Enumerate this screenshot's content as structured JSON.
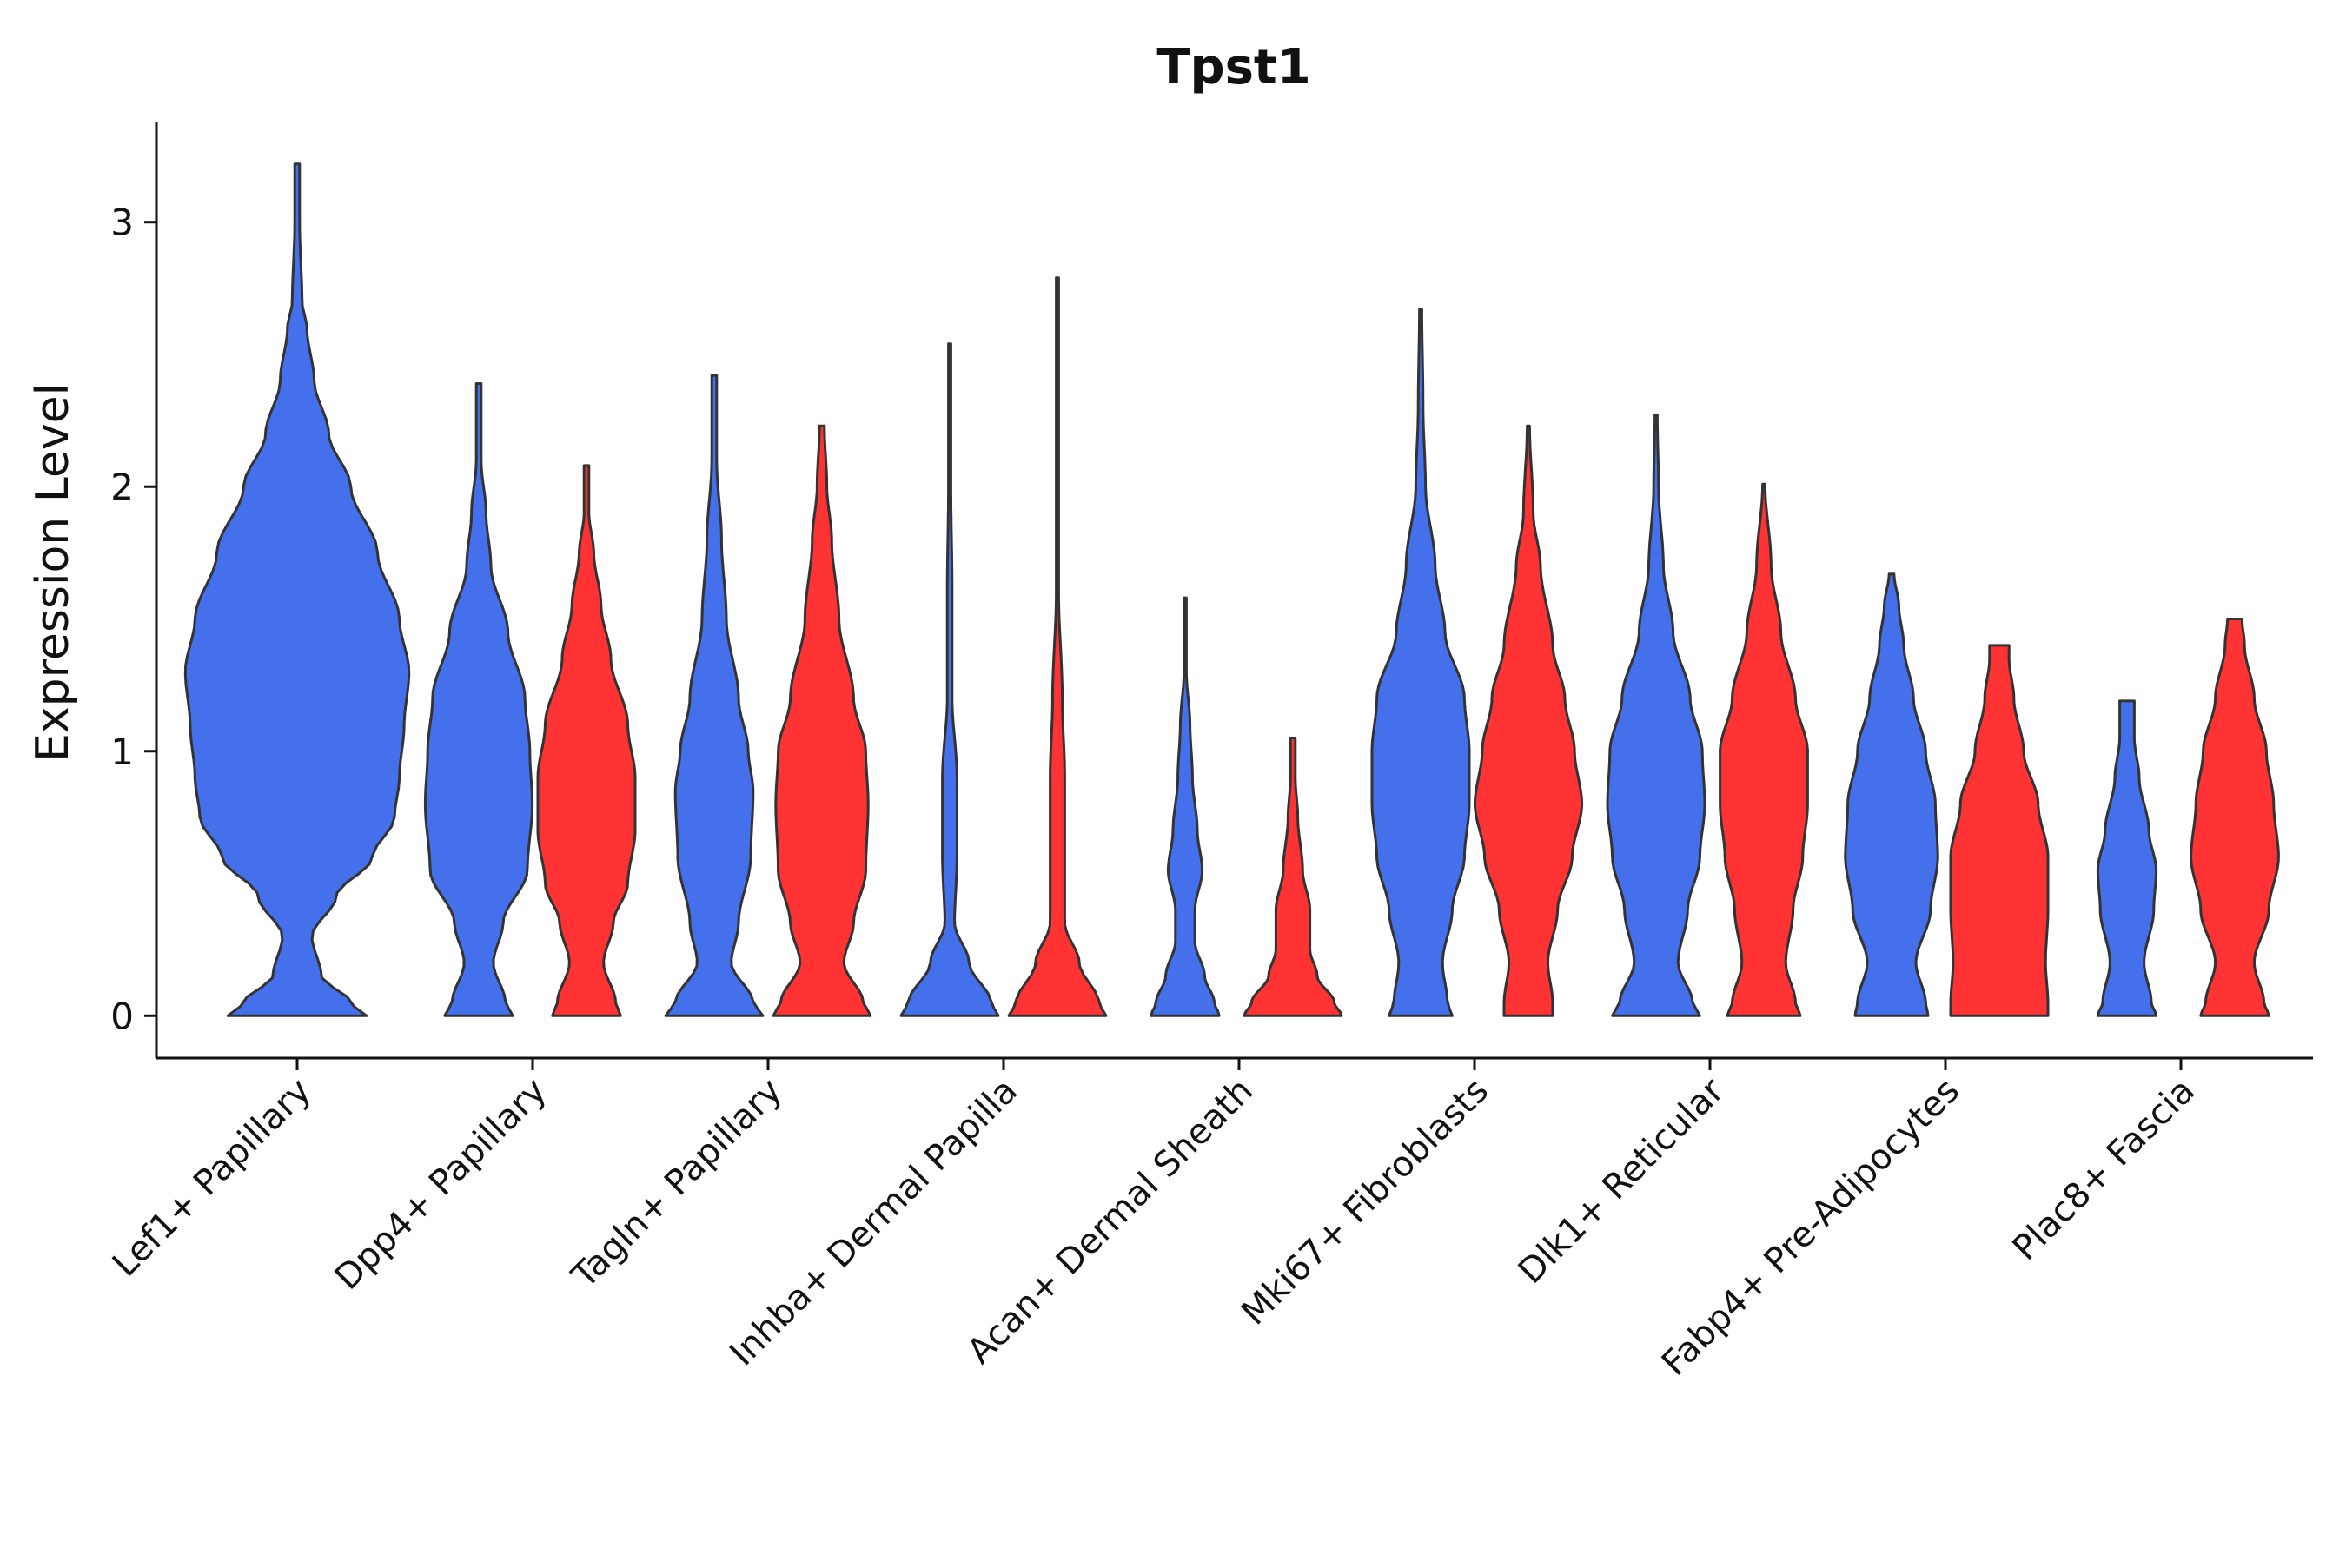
{
  "chart_data": {
    "type": "violin",
    "title": "Tpst1",
    "xlabel": "",
    "ylabel": "Expression Level",
    "ylim": [
      -0.16,
      3.38
    ],
    "yticks": [
      0,
      1,
      2,
      3
    ],
    "grid": false,
    "legend": "none",
    "colors": {
      "group1": "#4470EC",
      "group2": "#FF3333"
    },
    "categories": [
      "Lef1+ Papillary",
      "Dpp4+ Papillary",
      "Tagln+ Papillary",
      "Inhba+ Dermal Papilla",
      "Acan+ Dermal Sheath",
      "Mki67+ Fibroblasts",
      "Dlk1+ Reticular",
      "Fabp4+ Pre-Adipocytes",
      "Plac8+ Fascia"
    ],
    "violins": [
      {
        "category": "Lef1+ Papillary",
        "group": "group1",
        "max": 3.22,
        "profile": [
          [
            0,
            0.285
          ],
          [
            0.05,
            0.22
          ],
          [
            0.15,
            0.1
          ],
          [
            0.3,
            0.06
          ],
          [
            0.45,
            0.16
          ],
          [
            0.6,
            0.31
          ],
          [
            0.75,
            0.4
          ],
          [
            0.9,
            0.42
          ],
          [
            1.1,
            0.44
          ],
          [
            1.3,
            0.46
          ],
          [
            1.5,
            0.42
          ],
          [
            1.75,
            0.33
          ],
          [
            2.0,
            0.22
          ],
          [
            2.2,
            0.13
          ],
          [
            2.4,
            0.07
          ],
          [
            2.6,
            0.04
          ],
          [
            2.7,
            0.02
          ],
          [
            3.0,
            0.01
          ],
          [
            3.22,
            0.01
          ]
        ]
      },
      {
        "category": "Dpp4+ Papillary",
        "group": "group1",
        "max": 2.39,
        "profile": [
          [
            0,
            0.14
          ],
          [
            0.05,
            0.11
          ],
          [
            0.2,
            0.06
          ],
          [
            0.35,
            0.1
          ],
          [
            0.55,
            0.2
          ],
          [
            0.8,
            0.22
          ],
          [
            1.0,
            0.21
          ],
          [
            1.2,
            0.19
          ],
          [
            1.45,
            0.12
          ],
          [
            1.7,
            0.05
          ],
          [
            1.9,
            0.03
          ],
          [
            2.1,
            0.01
          ],
          [
            2.39,
            0.01
          ]
        ]
      },
      {
        "category": "Dpp4+ Papillary",
        "group": "group2",
        "max": 2.08,
        "profile": [
          [
            0,
            0.14
          ],
          [
            0.05,
            0.12
          ],
          [
            0.2,
            0.07
          ],
          [
            0.35,
            0.11
          ],
          [
            0.5,
            0.17
          ],
          [
            0.7,
            0.2
          ],
          [
            0.9,
            0.2
          ],
          [
            1.1,
            0.17
          ],
          [
            1.35,
            0.1
          ],
          [
            1.55,
            0.06
          ],
          [
            1.75,
            0.03
          ],
          [
            1.9,
            0.01
          ],
          [
            2.08,
            0.01
          ]
        ]
      },
      {
        "category": "Tagln+ Papillary",
        "group": "group1",
        "max": 2.42,
        "profile": [
          [
            0,
            0.2
          ],
          [
            0.05,
            0.16
          ],
          [
            0.2,
            0.07
          ],
          [
            0.35,
            0.1
          ],
          [
            0.6,
            0.15
          ],
          [
            0.85,
            0.16
          ],
          [
            1.0,
            0.14
          ],
          [
            1.2,
            0.1
          ],
          [
            1.5,
            0.05
          ],
          [
            1.8,
            0.03
          ],
          [
            2.1,
            0.01
          ],
          [
            2.42,
            0.01
          ]
        ]
      },
      {
        "category": "Tagln+ Papillary",
        "group": "group2",
        "max": 2.23,
        "profile": [
          [
            0,
            0.2
          ],
          [
            0.05,
            0.17
          ],
          [
            0.2,
            0.09
          ],
          [
            0.35,
            0.13
          ],
          [
            0.55,
            0.18
          ],
          [
            0.8,
            0.19
          ],
          [
            1.0,
            0.18
          ],
          [
            1.2,
            0.13
          ],
          [
            1.5,
            0.07
          ],
          [
            1.8,
            0.04
          ],
          [
            2.0,
            0.02
          ],
          [
            2.23,
            0.01
          ]
        ]
      },
      {
        "category": "Inhba+ Dermal Papilla",
        "group": "group1",
        "max": 2.54,
        "profile": [
          [
            0,
            0.2
          ],
          [
            0.05,
            0.17
          ],
          [
            0.2,
            0.08
          ],
          [
            0.35,
            0.02
          ],
          [
            0.6,
            0.03
          ],
          [
            0.9,
            0.03
          ],
          [
            1.2,
            0.01
          ],
          [
            1.6,
            0.01
          ],
          [
            2.0,
            0.005
          ],
          [
            2.54,
            0.005
          ]
        ]
      },
      {
        "category": "Inhba+ Dermal Papilla",
        "group": "group2",
        "max": 2.79,
        "profile": [
          [
            0,
            0.2
          ],
          [
            0.05,
            0.17
          ],
          [
            0.2,
            0.09
          ],
          [
            0.35,
            0.03
          ],
          [
            0.6,
            0.03
          ],
          [
            0.9,
            0.03
          ],
          [
            1.2,
            0.02
          ],
          [
            1.6,
            0.005
          ],
          [
            2.0,
            0.005
          ],
          [
            2.79,
            0.005
          ]
        ]
      },
      {
        "category": "Acan+ Dermal Sheath",
        "group": "group1",
        "max": 1.58,
        "profile": [
          [
            0,
            0.14
          ],
          [
            0.05,
            0.12
          ],
          [
            0.15,
            0.08
          ],
          [
            0.28,
            0.04
          ],
          [
            0.4,
            0.04
          ],
          [
            0.55,
            0.07
          ],
          [
            0.7,
            0.05
          ],
          [
            0.9,
            0.03
          ],
          [
            1.1,
            0.02
          ],
          [
            1.3,
            0.005
          ],
          [
            1.58,
            0.005
          ]
        ]
      },
      {
        "category": "Acan+ Dermal Sheath",
        "group": "group2",
        "max": 1.05,
        "profile": [
          [
            0,
            0.2
          ],
          [
            0.05,
            0.17
          ],
          [
            0.15,
            0.1
          ],
          [
            0.25,
            0.07
          ],
          [
            0.4,
            0.07
          ],
          [
            0.55,
            0.04
          ],
          [
            0.75,
            0.02
          ],
          [
            0.9,
            0.01
          ],
          [
            1.05,
            0.01
          ]
        ]
      },
      {
        "category": "Mki67+ Fibroblasts",
        "group": "group1",
        "max": 2.67,
        "profile": [
          [
            0,
            0.13
          ],
          [
            0.05,
            0.11
          ],
          [
            0.2,
            0.09
          ],
          [
            0.4,
            0.13
          ],
          [
            0.6,
            0.18
          ],
          [
            0.8,
            0.2
          ],
          [
            1.0,
            0.2
          ],
          [
            1.2,
            0.18
          ],
          [
            1.45,
            0.1
          ],
          [
            1.7,
            0.06
          ],
          [
            2.0,
            0.02
          ],
          [
            2.3,
            0.01
          ],
          [
            2.67,
            0.005
          ]
        ]
      },
      {
        "category": "Mki67+ Fibroblasts",
        "group": "group2",
        "max": 2.23,
        "profile": [
          [
            0,
            0.1
          ],
          [
            0.05,
            0.1
          ],
          [
            0.2,
            0.08
          ],
          [
            0.4,
            0.12
          ],
          [
            0.6,
            0.18
          ],
          [
            0.8,
            0.22
          ],
          [
            1.0,
            0.19
          ],
          [
            1.2,
            0.15
          ],
          [
            1.4,
            0.1
          ],
          [
            1.7,
            0.05
          ],
          [
            1.9,
            0.02
          ],
          [
            2.23,
            0.005
          ]
        ]
      },
      {
        "category": "Dlk1+ Reticular",
        "group": "group1",
        "max": 2.27,
        "profile": [
          [
            0,
            0.18
          ],
          [
            0.05,
            0.15
          ],
          [
            0.2,
            0.09
          ],
          [
            0.4,
            0.13
          ],
          [
            0.6,
            0.18
          ],
          [
            0.8,
            0.2
          ],
          [
            1.0,
            0.19
          ],
          [
            1.2,
            0.14
          ],
          [
            1.45,
            0.07
          ],
          [
            1.7,
            0.03
          ],
          [
            2.0,
            0.01
          ],
          [
            2.27,
            0.005
          ]
        ]
      },
      {
        "category": "Dlk1+ Reticular",
        "group": "group2",
        "max": 2.01,
        "profile": [
          [
            0,
            0.15
          ],
          [
            0.05,
            0.13
          ],
          [
            0.2,
            0.09
          ],
          [
            0.4,
            0.12
          ],
          [
            0.6,
            0.16
          ],
          [
            0.8,
            0.18
          ],
          [
            1.0,
            0.18
          ],
          [
            1.2,
            0.13
          ],
          [
            1.45,
            0.07
          ],
          [
            1.7,
            0.03
          ],
          [
            2.01,
            0.005
          ]
        ]
      },
      {
        "category": "Fabp4+ Pre-Adipocytes",
        "group": "group1",
        "max": 1.67,
        "profile": [
          [
            0,
            0.15
          ],
          [
            0.05,
            0.14
          ],
          [
            0.2,
            0.1
          ],
          [
            0.4,
            0.16
          ],
          [
            0.6,
            0.19
          ],
          [
            0.8,
            0.18
          ],
          [
            1.0,
            0.14
          ],
          [
            1.2,
            0.09
          ],
          [
            1.4,
            0.05
          ],
          [
            1.55,
            0.03
          ],
          [
            1.67,
            0.01
          ]
        ]
      },
      {
        "category": "Fabp4+ Pre-Adipocytes",
        "group": "group2",
        "max": 1.4,
        "profile": [
          [
            0,
            0.2
          ],
          [
            0.05,
            0.2
          ],
          [
            0.2,
            0.19
          ],
          [
            0.4,
            0.2
          ],
          [
            0.6,
            0.2
          ],
          [
            0.8,
            0.16
          ],
          [
            1.0,
            0.1
          ],
          [
            1.2,
            0.06
          ],
          [
            1.35,
            0.04
          ],
          [
            1.4,
            0.04
          ]
        ]
      },
      {
        "category": "Plac8+ Fascia",
        "group": "group1",
        "max": 1.19,
        "profile": [
          [
            0,
            0.12
          ],
          [
            0.05,
            0.1
          ],
          [
            0.2,
            0.07
          ],
          [
            0.4,
            0.11
          ],
          [
            0.55,
            0.12
          ],
          [
            0.7,
            0.09
          ],
          [
            0.9,
            0.05
          ],
          [
            1.05,
            0.03
          ],
          [
            1.19,
            0.03
          ]
        ]
      },
      {
        "category": "Plac8+ Fascia",
        "group": "group2",
        "max": 1.5,
        "profile": [
          [
            0,
            0.14
          ],
          [
            0.05,
            0.12
          ],
          [
            0.2,
            0.08
          ],
          [
            0.4,
            0.14
          ],
          [
            0.6,
            0.18
          ],
          [
            0.8,
            0.16
          ],
          [
            1.0,
            0.13
          ],
          [
            1.2,
            0.08
          ],
          [
            1.4,
            0.04
          ],
          [
            1.5,
            0.03
          ]
        ]
      }
    ]
  }
}
